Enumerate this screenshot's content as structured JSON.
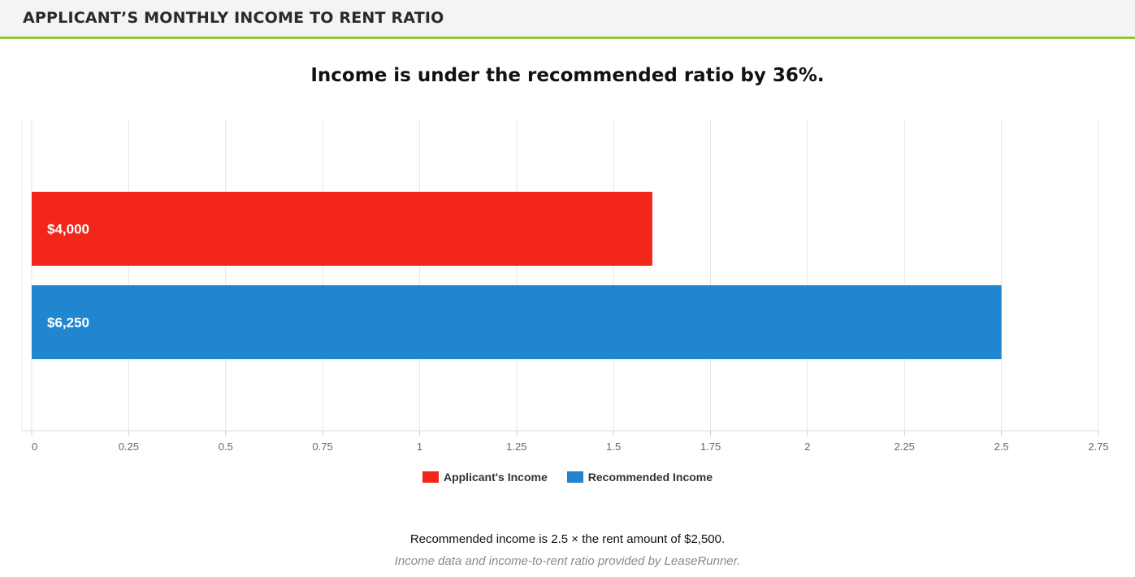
{
  "header": {
    "title": "APPLICANT’S MONTHLY INCOME TO RENT RATIO"
  },
  "headline": "Income is under the recommended ratio by 36%.",
  "colors": {
    "applicant": "#f3261a",
    "recommended": "#1f86cf",
    "accent": "#8dc63f"
  },
  "chart_data": {
    "type": "bar",
    "orientation": "horizontal",
    "categories": [
      "Applicant's Income",
      "Recommended Income"
    ],
    "values": [
      1.6,
      2.5
    ],
    "data_labels": [
      "$4,000",
      "$6,250"
    ],
    "xlim": [
      0,
      2.75
    ],
    "x_ticks": [
      "0",
      "0.25",
      "0.5",
      "0.75",
      "1",
      "1.25",
      "1.5",
      "1.75",
      "2",
      "2.25",
      "2.5",
      "2.75"
    ],
    "grid": true,
    "legend_position": "bottom",
    "series": [
      {
        "name": "Applicant's Income",
        "color": "#f3261a"
      },
      {
        "name": "Recommended Income",
        "color": "#1f86cf"
      }
    ]
  },
  "footer": {
    "note": "Recommended income is 2.5 × the rent amount of $2,500.",
    "credit": "Income data and income-to-rent ratio provided by LeaseRunner."
  }
}
